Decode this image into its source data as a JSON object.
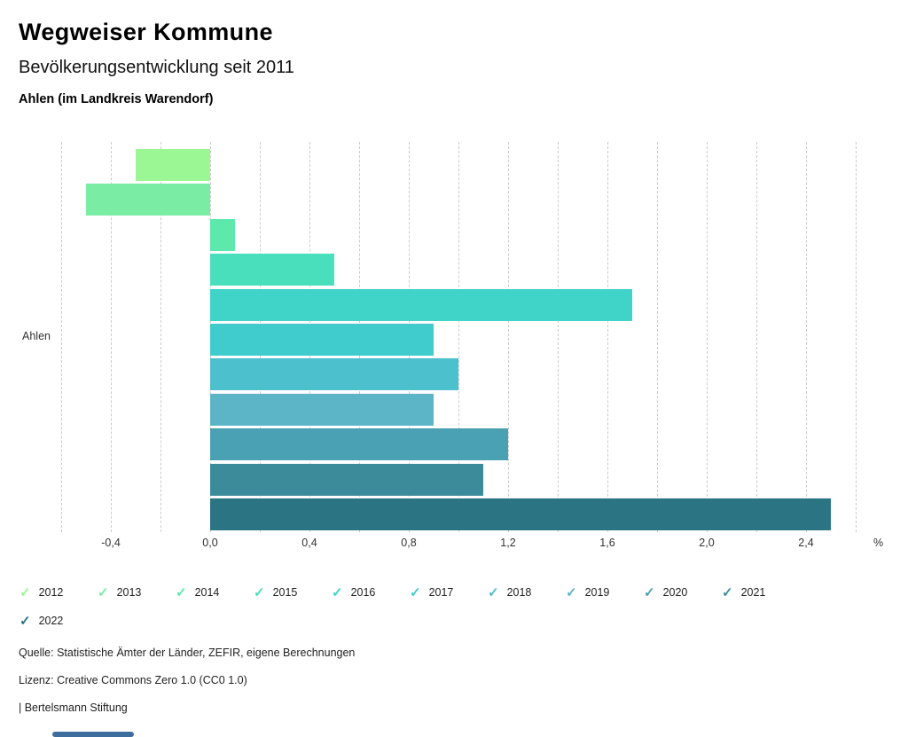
{
  "header": {
    "title": "Wegweiser Kommune",
    "subtitle": "Bevölkerungsentwicklung seit 2011",
    "region": "Ahlen (im Landkreis Warendorf)"
  },
  "chart_data": {
    "type": "bar",
    "orientation": "horizontal",
    "group_label": "Ahlen",
    "unit": "%",
    "categories": [
      "2012",
      "2013",
      "2014",
      "2015",
      "2016",
      "2017",
      "2018",
      "2019",
      "2020",
      "2021",
      "2022"
    ],
    "values": [
      -0.3,
      -0.5,
      0.1,
      0.5,
      1.7,
      0.9,
      1.0,
      0.9,
      1.2,
      1.1,
      2.5
    ],
    "colors": [
      "#9af794",
      "#7beca4",
      "#5de8ac",
      "#4adfbc",
      "#40d4c8",
      "#40cbcd",
      "#4dc0ce",
      "#5bb5c7",
      "#4aa1b3",
      "#3b8b9b",
      "#2a7484"
    ],
    "xlim": [
      -0.6,
      2.6
    ],
    "gridline_step": 0.2,
    "grid": "vertical dashed",
    "grid_color": "#cbcbcb",
    "x_ticks": [
      -0.4,
      0.0,
      0.4,
      0.8,
      1.2,
      1.6,
      2.0,
      2.4
    ],
    "x_tick_labels": [
      "-0,4",
      "0,0",
      "0,4",
      "0,8",
      "1,2",
      "1,6",
      "2,0",
      "2,4"
    ],
    "legend_position": "bottom",
    "legend_entries": [
      "2012",
      "2013",
      "2014",
      "2015",
      "2016",
      "2017",
      "2018",
      "2019",
      "2020",
      "2021",
      "2022"
    ]
  },
  "icons": {
    "check": "✓"
  },
  "footer": {
    "source": "Quelle: Statistische Ämter der Länder, ZEFIR, eigene Berechnungen",
    "license": "Lizenz: Creative Commons Zero 1.0 (CC0 1.0)",
    "attribution": "| Bertelsmann Stiftung"
  },
  "ui": {
    "scrollbar_thumb_color": "#3d6e9e"
  }
}
